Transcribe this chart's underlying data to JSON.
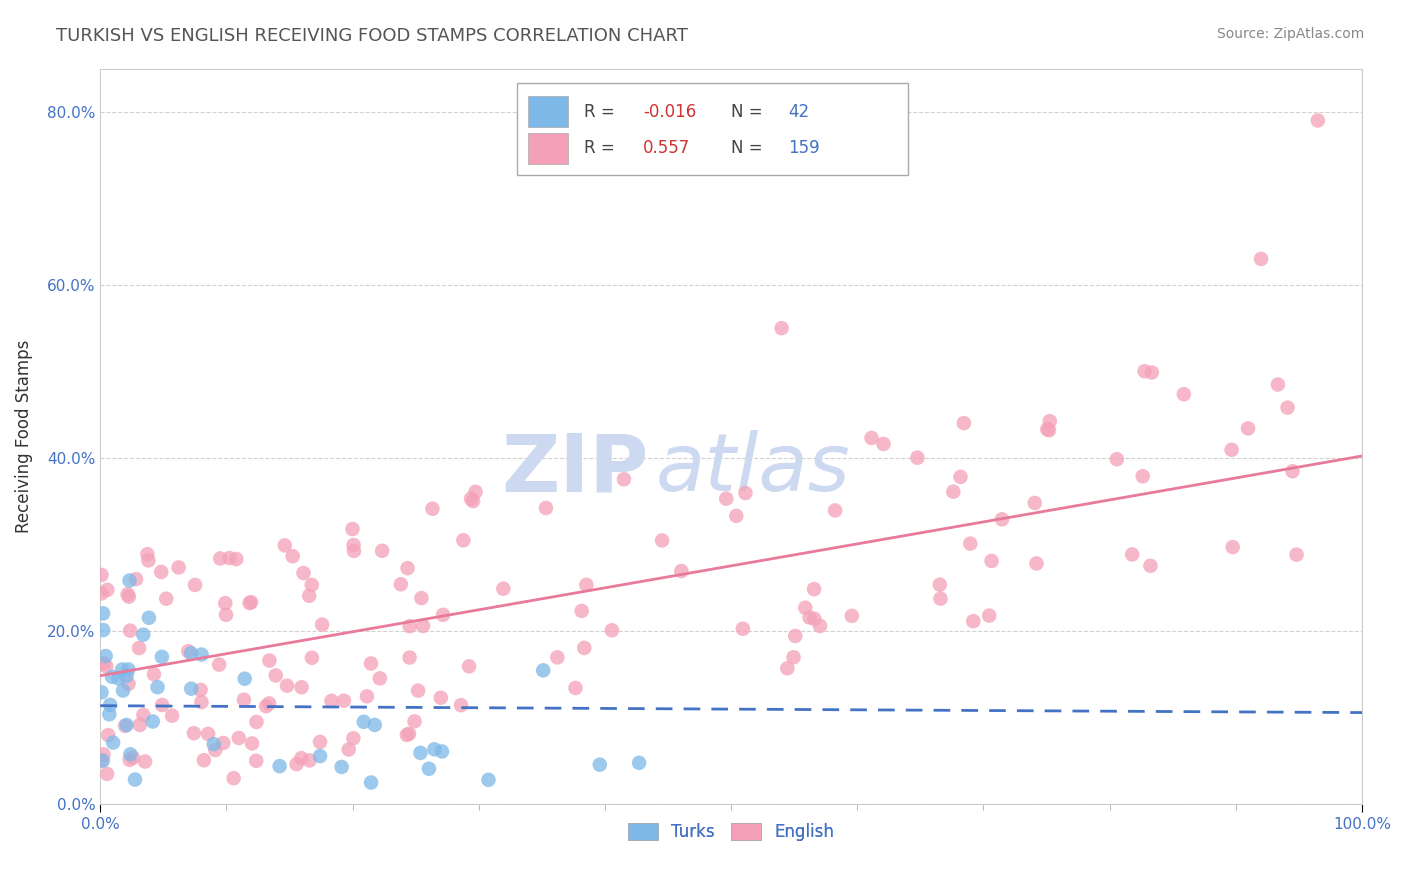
{
  "title": "TURKISH VS ENGLISH RECEIVING FOOD STAMPS CORRELATION CHART",
  "source": "Source: ZipAtlas.com",
  "ylabel": "Receiving Food Stamps",
  "watermark_zip": "ZIP",
  "watermark_atlas": "atlas",
  "legend_entries": [
    {
      "label": "Turks",
      "color": "#a8c8f0",
      "R": -0.016,
      "N": 42
    },
    {
      "label": "English",
      "color": "#f4a0b8",
      "R": 0.557,
      "N": 159
    }
  ],
  "xlim": [
    0,
    100
  ],
  "ylim": [
    0,
    85
  ],
  "yticks_pct": [
    0,
    20,
    40,
    60,
    80
  ],
  "background_color": "#ffffff",
  "grid_color": "#cccccc",
  "blue_line_color": "#4472c4",
  "pink_line_color": "#e87a9a",
  "blue_dot_color": "#7db8e8",
  "pink_dot_color": "#f4a0b8",
  "title_color": "#555555",
  "source_color": "#888888",
  "tick_color_blue": "#4472c4",
  "watermark_color": "#ccd9f0"
}
